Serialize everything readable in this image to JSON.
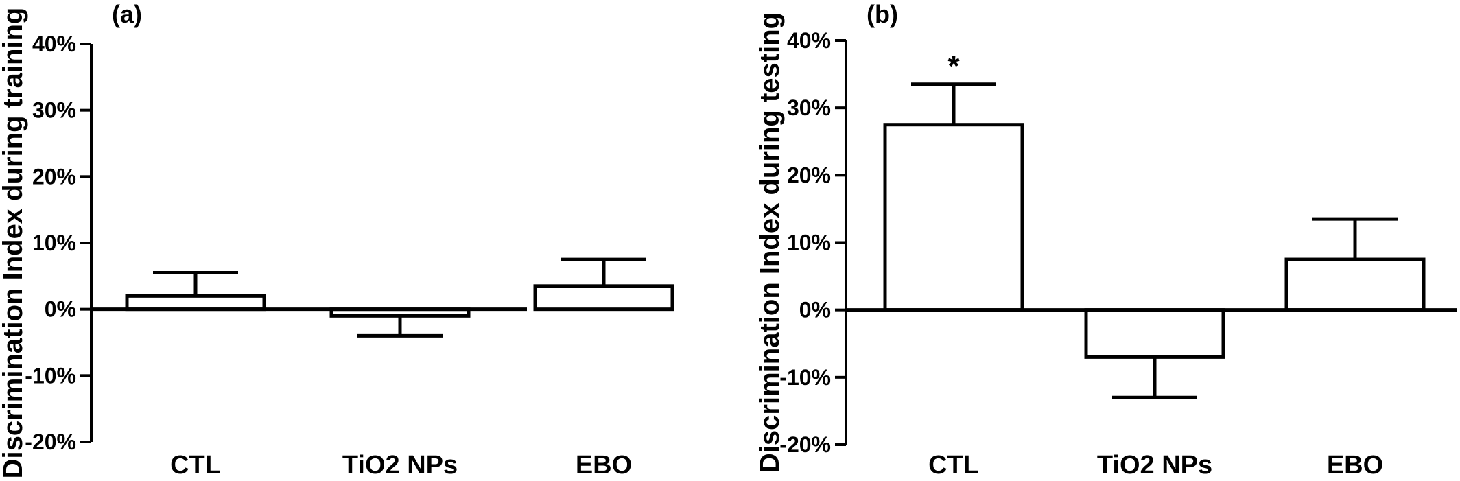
{
  "chart_data": [
    {
      "type": "bar",
      "panel": "(a)",
      "ylabel": "Discrimination Index during training",
      "categories": [
        "CTL",
        "TiO2 NPs",
        "EBO"
      ],
      "series": [
        {
          "values": [
            2,
            -1,
            3.5
          ],
          "error": [
            3.5,
            3,
            4
          ]
        }
      ],
      "ylim": [
        -20,
        40
      ],
      "yticks": [
        "40%",
        "30%",
        "20%",
        "10%",
        "0%",
        "-10%",
        "-20%"
      ],
      "yticks_values": [
        40,
        30,
        20,
        10,
        0,
        -10,
        -20
      ],
      "significance": [
        "",
        "",
        ""
      ],
      "grid": false
    },
    {
      "type": "bar",
      "panel": "(b)",
      "ylabel": "Discrimination Index during testing",
      "categories": [
        "CTL",
        "TiO2 NPs",
        "EBO"
      ],
      "series": [
        {
          "values": [
            27.5,
            -7,
            7.5
          ],
          "error": [
            6,
            6,
            6
          ]
        }
      ],
      "ylim": [
        -20,
        40
      ],
      "yticks": [
        "40%",
        "30%",
        "20%",
        "10%",
        "0%",
        "-10%",
        "-20%"
      ],
      "yticks_values": [
        40,
        30,
        20,
        10,
        0,
        -10,
        -20
      ],
      "significance": [
        "*",
        "",
        ""
      ],
      "grid": false
    }
  ]
}
